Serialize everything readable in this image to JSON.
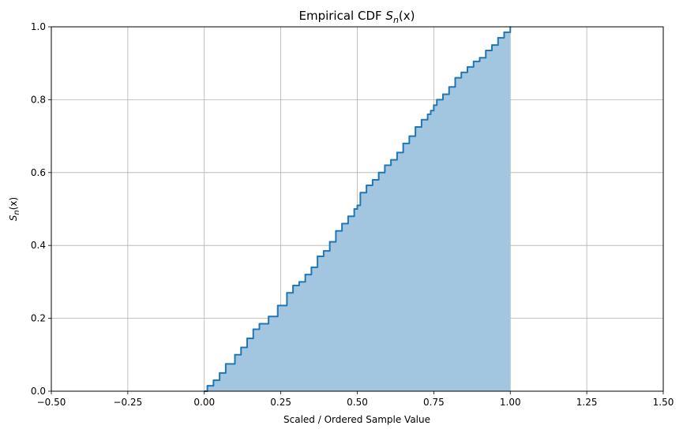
{
  "chart_data": {
    "type": "area",
    "title_prefix": "Empirical CDF ",
    "title_math": "S",
    "title_sub": "n",
    "title_suffix": "(x)",
    "xlabel": "Scaled / Ordered Sample Value",
    "ylabel_math": "S",
    "ylabel_sub": "n",
    "ylabel_suffix": "(x)",
    "xlim": [
      -0.5,
      1.5
    ],
    "ylim": [
      0,
      1.0
    ],
    "grid": true,
    "x_ticks": [
      -0.5,
      -0.25,
      0.0,
      0.25,
      0.5,
      0.75,
      1.0,
      1.25,
      1.5
    ],
    "x_tick_labels": [
      "−0.50",
      "−0.25",
      "0.00",
      "0.25",
      "0.50",
      "0.75",
      "1.00",
      "1.25",
      "1.50"
    ],
    "y_ticks": [
      0.0,
      0.2,
      0.4,
      0.6,
      0.8,
      1.0
    ],
    "y_tick_labels": [
      "0.0",
      "0.2",
      "0.4",
      "0.6",
      "0.8",
      "1.0"
    ],
    "colors": {
      "line": "#1f77b4",
      "fill": "#a3c6e0",
      "grid": "#b0b0b0"
    },
    "series": [
      {
        "x": [
          0.0,
          0.01,
          0.03,
          0.05,
          0.07,
          0.1,
          0.12,
          0.14,
          0.16,
          0.18,
          0.21,
          0.24,
          0.27,
          0.29,
          0.31,
          0.33,
          0.35,
          0.37,
          0.39,
          0.41,
          0.43,
          0.45,
          0.47,
          0.49,
          0.5,
          0.51,
          0.53,
          0.55,
          0.57,
          0.59,
          0.61,
          0.63,
          0.65,
          0.67,
          0.69,
          0.71,
          0.73,
          0.74,
          0.75,
          0.76,
          0.78,
          0.8,
          0.82,
          0.84,
          0.86,
          0.88,
          0.9,
          0.92,
          0.94,
          0.96,
          0.98,
          1.0
        ],
        "y": [
          0.0,
          0.015,
          0.03,
          0.05,
          0.075,
          0.1,
          0.12,
          0.145,
          0.17,
          0.185,
          0.205,
          0.235,
          0.27,
          0.29,
          0.3,
          0.32,
          0.34,
          0.37,
          0.385,
          0.41,
          0.44,
          0.46,
          0.48,
          0.5,
          0.51,
          0.545,
          0.565,
          0.58,
          0.6,
          0.62,
          0.635,
          0.655,
          0.68,
          0.7,
          0.725,
          0.745,
          0.76,
          0.77,
          0.785,
          0.8,
          0.815,
          0.835,
          0.86,
          0.875,
          0.89,
          0.905,
          0.915,
          0.935,
          0.95,
          0.97,
          0.985,
          1.0
        ]
      }
    ]
  }
}
